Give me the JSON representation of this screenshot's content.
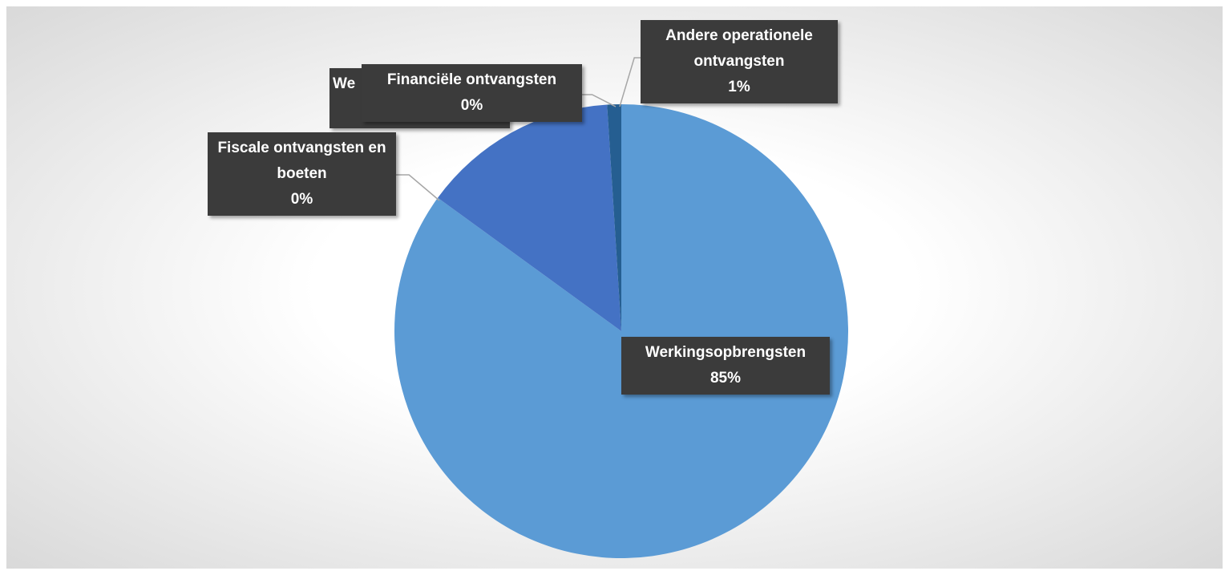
{
  "chart_data": {
    "type": "pie",
    "categories": [
      "Werkingsopbrengsten",
      "Fiscale ontvangsten en boeten",
      "We",
      "Financiële ontvangsten",
      "Andere operationele ontvangsten"
    ],
    "values": [
      85,
      0,
      14,
      0,
      1
    ],
    "value_labels": [
      "85%",
      "0%",
      null,
      "0%",
      "1%"
    ],
    "colors": [
      "#5b9bd5",
      "#ed7d31",
      "#4472c4",
      "#a5a5a5",
      "#255e91"
    ]
  }
}
